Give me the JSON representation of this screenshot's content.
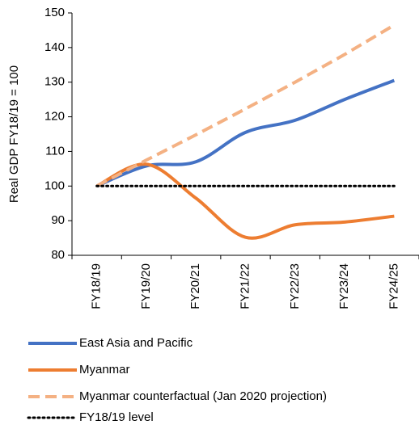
{
  "chart_data": {
    "type": "line",
    "y_label": "Real GDP  FY18/19 = 100",
    "categories": [
      "FY18/19",
      "FY19/20",
      "FY20/21",
      "FY21/22",
      "FY22/23",
      "FY23/24",
      "FY24/25"
    ],
    "series": [
      {
        "name": "East Asia and Pacific",
        "color": "#4472c4",
        "style": "solid",
        "values": [
          100,
          105.8,
          107,
          115.5,
          119,
          125,
          130.5
        ]
      },
      {
        "name": "Myanmar",
        "color": "#ed7d31",
        "style": "solid",
        "values": [
          100,
          106.3,
          96.5,
          85.2,
          88.8,
          89.6,
          91.3
        ]
      },
      {
        "name": "Myanmar counterfactual (Jan 2020 projection)",
        "color": "#f4b183",
        "style": "dashed",
        "values": [
          100,
          107.5,
          114.8,
          122.3,
          130,
          138,
          146.5
        ]
      },
      {
        "name": "FY18/19 level",
        "color": "#000000",
        "style": "dotted",
        "values": [
          100,
          100,
          100,
          100,
          100,
          100,
          100
        ]
      }
    ],
    "ylim": [
      80,
      150
    ],
    "yticks": [
      80,
      90,
      100,
      110,
      120,
      130,
      140,
      150
    ],
    "grid": false,
    "legend": "bottom"
  }
}
